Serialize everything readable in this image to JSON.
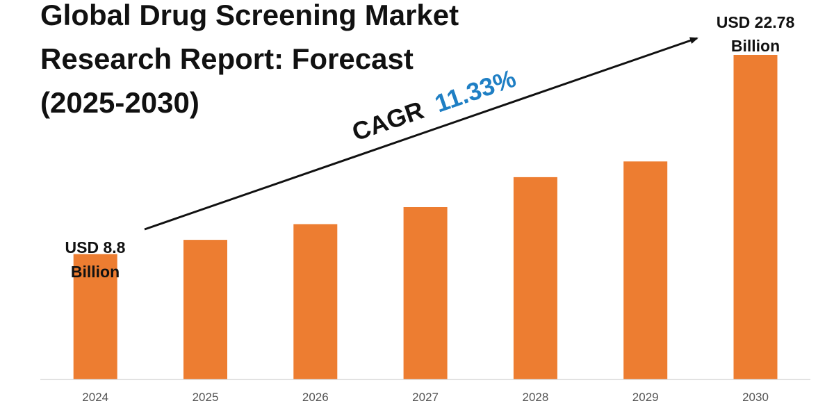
{
  "title_lines": [
    "Global Drug Screening Market",
    "Research Report: Forecast",
    "(2025-2030)"
  ],
  "cagr": {
    "label": "CAGR",
    "value": "11.33%",
    "value_color": "#1f7fc4"
  },
  "start_label": [
    "USD 8.8",
    "Billion"
  ],
  "end_label": [
    "USD 22.78",
    "Billion"
  ],
  "colors": {
    "bar": "#ed7d31",
    "text": "#111111",
    "axis": "#d9d9d9",
    "tick": "#555555"
  },
  "chart_data": {
    "type": "bar",
    "title": "Global Drug Screening Market Research Report: Forecast (2025-2030)",
    "xlabel": "",
    "ylabel": "",
    "categories": [
      "2024",
      "2025",
      "2026",
      "2027",
      "2028",
      "2029",
      "2030"
    ],
    "values": [
      8.8,
      9.8,
      10.9,
      12.1,
      14.2,
      15.3,
      22.78
    ],
    "unit": "USD Billion",
    "grid": false,
    "legend": "none"
  }
}
